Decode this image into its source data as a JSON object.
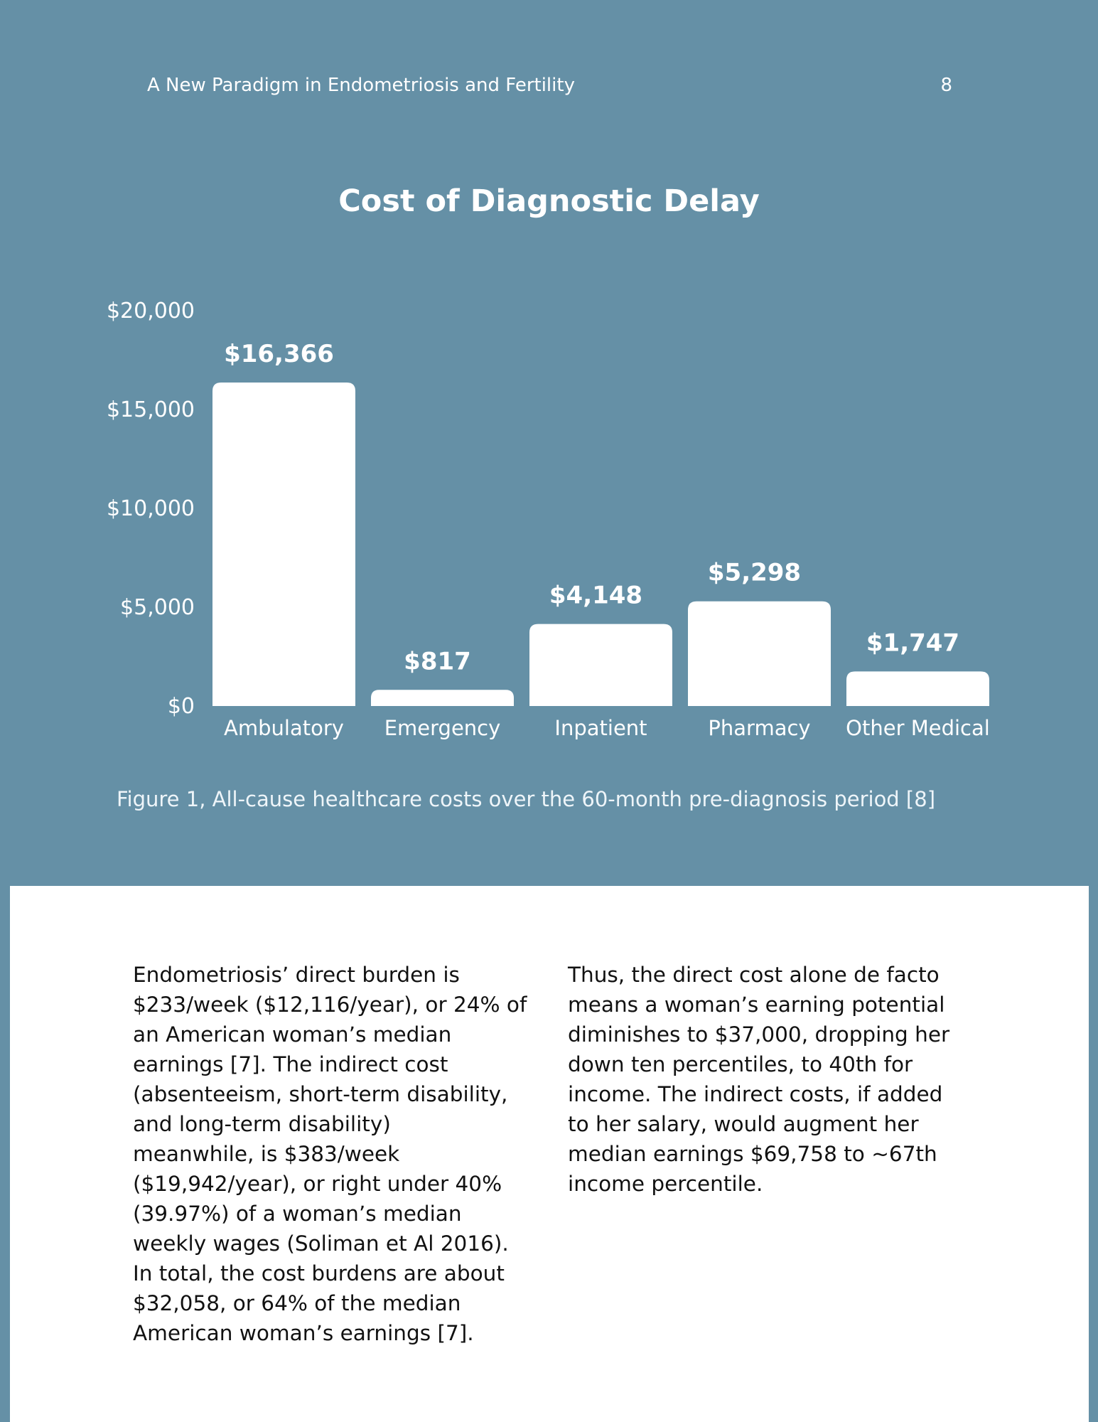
{
  "header": {
    "title": "A New Paradigm in Endometriosis and Fertility",
    "page_number": "8"
  },
  "colors": {
    "background": "#6590a6",
    "bars": "#ffffff",
    "text_light": "#ffffff",
    "panel": "#ffffff",
    "body_text": "#111111"
  },
  "chart_data": {
    "type": "bar",
    "title": "Cost of Diagnostic Delay",
    "categories": [
      "Ambulatory",
      "Emergency",
      "Inpatient",
      "Pharmacy",
      "Other Medical"
    ],
    "values": [
      16366,
      817,
      4148,
      5298,
      1747
    ],
    "data_labels": [
      "$16,366",
      "$817",
      "$4,148",
      "$5,298",
      "$1,747"
    ],
    "yticks": [
      0,
      5000,
      10000,
      15000,
      20000
    ],
    "ytick_labels": [
      "$0",
      "$5,000",
      "$10,000",
      "$15,000",
      "$20,000"
    ],
    "ylim": [
      0,
      20000
    ],
    "grid": false,
    "legend": "none",
    "xlabel": "",
    "ylabel": ""
  },
  "caption": "Figure 1, All-cause healthcare costs over the 60-month pre-diagnosis period [8]",
  "body": {
    "left_column": "Endometriosis’ direct burden is\n$233/week ($12,116/year), or 24% of\nan American woman’s median\nearnings [7]. The indirect cost\n(absenteeism, short-term disability,\nand long-term disability)\nmeanwhile, is $383/week\n($19,942/year), or right under 40%\n(39.97%) of a woman’s median\nweekly wages (Soliman et Al 2016).\nIn total, the cost burdens are about\n$32,058, or 64% of the median\nAmerican woman’s earnings [7].",
    "right_column": "Thus, the direct cost alone de facto\nmeans a woman’s earning potential\ndiminishes to $37,000, dropping her\ndown ten percentiles, to 40th for\nincome. The indirect costs, if added\nto her salary, would augment her\nmedian earnings $69,758 to ~67th\nincome percentile."
  }
}
